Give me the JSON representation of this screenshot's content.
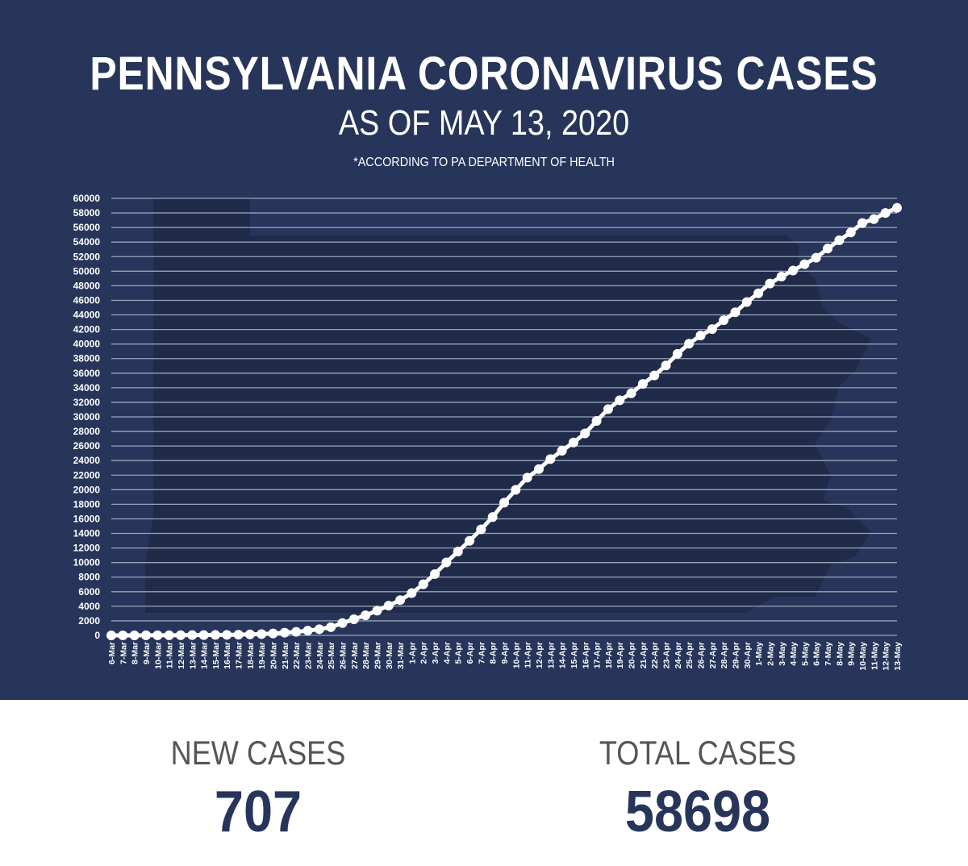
{
  "header": {
    "title": "PENNSYLVANIA CORONAVIRUS CASES",
    "subtitle": "AS OF MAY 13, 2020",
    "note": "*ACCORDING TO PA DEPARTMENT OF HEALTH"
  },
  "stats": {
    "new_label": "NEW CASES",
    "new_value": "707",
    "total_label": "TOTAL CASES",
    "total_value": "58698"
  },
  "colors": {
    "background": "#27355a",
    "line": "#ffffff",
    "grid": "#9aa4bb",
    "silhouette": "#1f2b48"
  },
  "chart_data": {
    "type": "line",
    "ylim": [
      0,
      60000
    ],
    "yticks": [
      0,
      2000,
      4000,
      6000,
      8000,
      10000,
      12000,
      14000,
      16000,
      18000,
      20000,
      22000,
      24000,
      26000,
      28000,
      30000,
      32000,
      34000,
      36000,
      38000,
      40000,
      42000,
      44000,
      46000,
      48000,
      50000,
      52000,
      54000,
      56000,
      58000,
      60000
    ],
    "grid": true,
    "categories": [
      "6-Mar",
      "7-Mar",
      "8-Mar",
      "9-Mar",
      "10-Mar",
      "11-Mar",
      "12-Mar",
      "13-Mar",
      "14-Mar",
      "15-Mar",
      "16-Mar",
      "17-Mar",
      "18-Mar",
      "19-Mar",
      "20-Mar",
      "21-Mar",
      "22-Mar",
      "23-Mar",
      "24-Mar",
      "25-Mar",
      "26-Mar",
      "27-Mar",
      "28-Mar",
      "29-Mar",
      "30-Mar",
      "31-Mar",
      "1-Apr",
      "2-Apr",
      "3-Apr",
      "4-Apr",
      "5-Apr",
      "6-Apr",
      "7-Apr",
      "8-Apr",
      "9-Apr",
      "10-Apr",
      "11-Apr",
      "12-Apr",
      "13-Apr",
      "14-Apr",
      "15-Apr",
      "16-Apr",
      "17-Apr",
      "18-Apr",
      "19-Apr",
      "20-Apr",
      "21-Apr",
      "22-Apr",
      "23-Apr",
      "24-Apr",
      "25-Apr",
      "26-Apr",
      "27-Apr",
      "28-Apr",
      "29-Apr",
      "30-Apr",
      "1-May",
      "2-May",
      "3-May",
      "4-May",
      "5-May",
      "6-May",
      "7-May",
      "8-May",
      "9-May",
      "10-May",
      "11-May",
      "12-May",
      "13-May"
    ],
    "values": [
      2,
      4,
      6,
      10,
      12,
      16,
      22,
      41,
      47,
      63,
      76,
      96,
      133,
      185,
      268,
      371,
      479,
      644,
      851,
      1127,
      1687,
      2218,
      2751,
      3394,
      4087,
      4843,
      5805,
      7016,
      8420,
      10017,
      11510,
      12980,
      14559,
      16239,
      18228,
      19979,
      21655,
      22833,
      24199,
      25345,
      26490,
      27735,
      29441,
      31069,
      32284,
      33232,
      34528,
      35684,
      37053,
      38652,
      40049,
      41165,
      42050,
      43264,
      44366,
      45763,
      46971,
      48305,
      49267,
      50092,
      50957,
      51845,
      53111,
      54238,
      55316,
      56611,
      57154,
      57991,
      58698
    ]
  }
}
